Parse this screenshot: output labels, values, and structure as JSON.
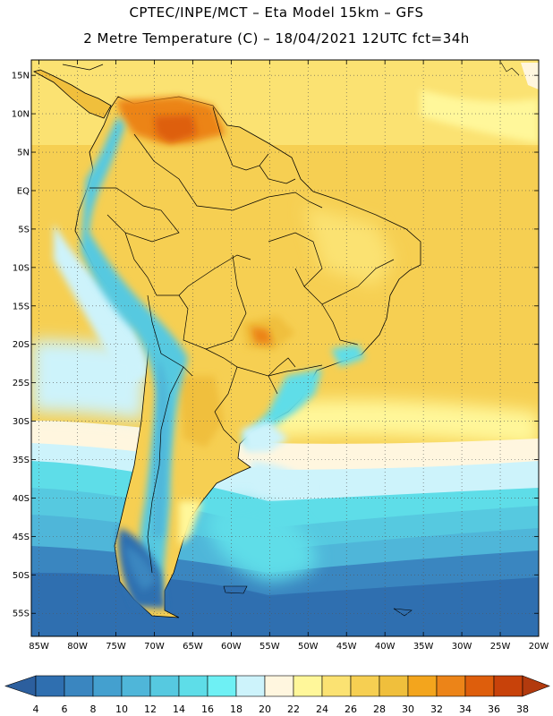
{
  "header": {
    "line1": "CPTEC/INPE/MCT –  Eta Model 15km – GFS",
    "line2": "2 Metre Temperature (C) – 18/04/2021 12UTC fct=34h"
  },
  "map": {
    "region": "South America",
    "lat_range": [
      -58,
      17
    ],
    "lon_range": [
      -86,
      -20
    ],
    "lat_labels": [
      "15N",
      "10N",
      "5N",
      "EQ",
      "5S",
      "10S",
      "15S",
      "20S",
      "25S",
      "30S",
      "35S",
      "40S",
      "45S",
      "50S",
      "55S"
    ],
    "lat_values": [
      15,
      10,
      5,
      0,
      -5,
      -10,
      -15,
      -20,
      -25,
      -30,
      -35,
      -40,
      -45,
      -50,
      -55
    ],
    "lon_labels": [
      "85W",
      "80W",
      "75W",
      "70W",
      "65W",
      "60W",
      "55W",
      "50W",
      "45W",
      "40W",
      "35W",
      "30W",
      "25W",
      "20W"
    ],
    "lon_values": [
      -85,
      -80,
      -75,
      -70,
      -65,
      -60,
      -55,
      -50,
      -45,
      -40,
      -35,
      -30,
      -25,
      -20
    ]
  },
  "colorbar": {
    "ticks": [
      "4",
      "6",
      "8",
      "10",
      "12",
      "14",
      "16",
      "18",
      "20",
      "22",
      "24",
      "26",
      "28",
      "30",
      "32",
      "34",
      "36",
      "38"
    ],
    "colors": [
      "#2f6fb0",
      "#3a86c0",
      "#44a0cf",
      "#4fb6d9",
      "#56c9e0",
      "#5edde8",
      "#6ef0f4",
      "#cdf3fb",
      "#fff6df",
      "#fff79a",
      "#fbe272",
      "#f6cf52",
      "#f0bf3c",
      "#f3a51d",
      "#ec8418",
      "#de5e0c",
      "#c8420a"
    ],
    "low_color": "#2c5f9e",
    "high_color": "#b23a0e"
  }
}
